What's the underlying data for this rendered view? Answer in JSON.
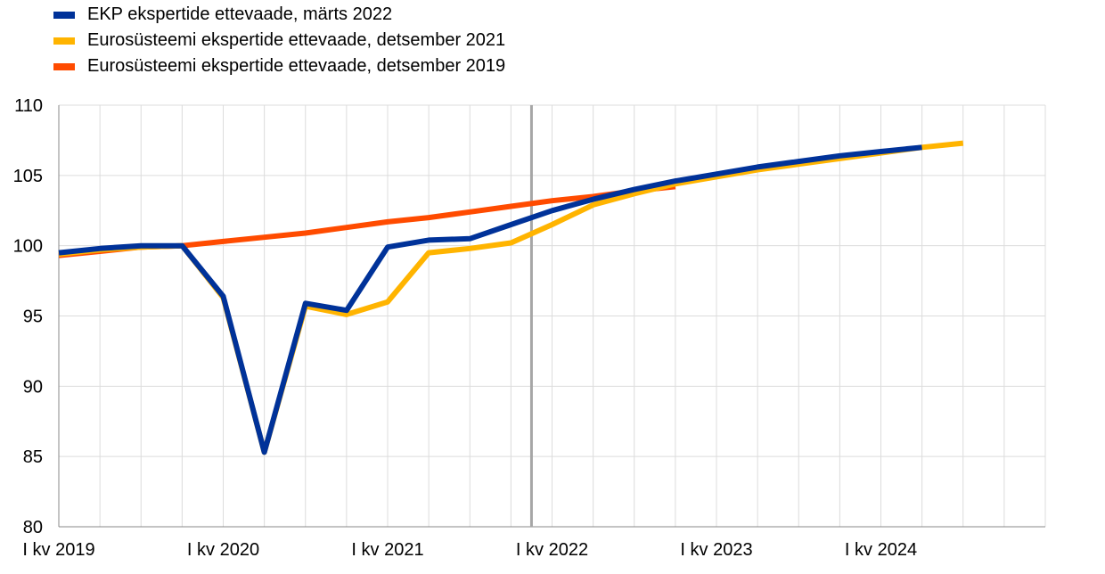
{
  "chart_data": {
    "type": "line",
    "title": "",
    "xlabel": "",
    "ylabel": "",
    "ylim": [
      80,
      110
    ],
    "yticks": [
      80,
      85,
      90,
      95,
      100,
      105,
      110
    ],
    "grid": true,
    "legend_position": "top-left",
    "periods": [
      "I kv 2019",
      "II kv 2019",
      "III kv 2019",
      "IV kv 2019",
      "I kv 2020",
      "II kv 2020",
      "III kv 2020",
      "IV kv 2020",
      "I kv 2021",
      "II kv 2021",
      "III kv 2021",
      "IV kv 2021",
      "I kv 2022",
      "II kv 2022",
      "III kv 2022",
      "IV kv 2022",
      "I kv 2023",
      "II kv 2023",
      "III kv 2023",
      "IV kv 2023",
      "I kv 2024",
      "II kv 2024",
      "III kv 2024",
      "IV kv 2024"
    ],
    "xtick_labels": [
      {
        "index": 0,
        "label": "I kv 2019"
      },
      {
        "index": 4,
        "label": "I kv 2020"
      },
      {
        "index": 8,
        "label": "I kv 2021"
      },
      {
        "index": 12,
        "label": "I kv 2022"
      },
      {
        "index": 16,
        "label": "I kv 2023"
      },
      {
        "index": 20,
        "label": "I kv 2024"
      }
    ],
    "projection_start_index": 11.5,
    "series": [
      {
        "name": "Eurosüsteemi ekspertide ettevaade, detsember 2019",
        "color": "#ff4b00",
        "values": [
          99.3,
          99.6,
          99.9,
          100.0,
          100.3,
          100.6,
          100.9,
          101.3,
          101.7,
          102.0,
          102.4,
          102.8,
          103.2,
          103.5,
          103.9,
          104.2,
          null,
          null,
          null,
          null,
          null,
          null,
          null,
          null
        ]
      },
      {
        "name": "Eurosüsteemi ekspertide ettevaade, detsember 2021",
        "color": "#ffb400",
        "values": [
          99.4,
          99.7,
          99.9,
          100.0,
          96.3,
          85.3,
          95.7,
          95.1,
          96.0,
          99.5,
          99.8,
          100.2,
          101.5,
          102.9,
          103.7,
          104.4,
          104.9,
          105.4,
          105.8,
          106.2,
          106.6,
          107.0,
          107.3,
          null
        ]
      },
      {
        "name": "EKP ekspertide ettevaade, märts 2022",
        "color": "#003299",
        "values": [
          99.5,
          99.8,
          100.0,
          100.0,
          96.4,
          85.3,
          95.9,
          95.4,
          99.9,
          100.4,
          100.5,
          101.5,
          102.5,
          103.3,
          104.0,
          104.6,
          105.1,
          105.6,
          106.0,
          106.4,
          106.7,
          107.0,
          null,
          null
        ]
      }
    ]
  },
  "legend": [
    {
      "label": "EKP ekspertide ettevaade, märts 2022",
      "color": "#003299"
    },
    {
      "label": "Eurosüsteemi ekspertide ettevaade, detsember 2021",
      "color": "#ffb400"
    },
    {
      "label": "Eurosüsteemi ekspertide ettevaade, detsember 2019",
      "color": "#ff4b00"
    }
  ]
}
